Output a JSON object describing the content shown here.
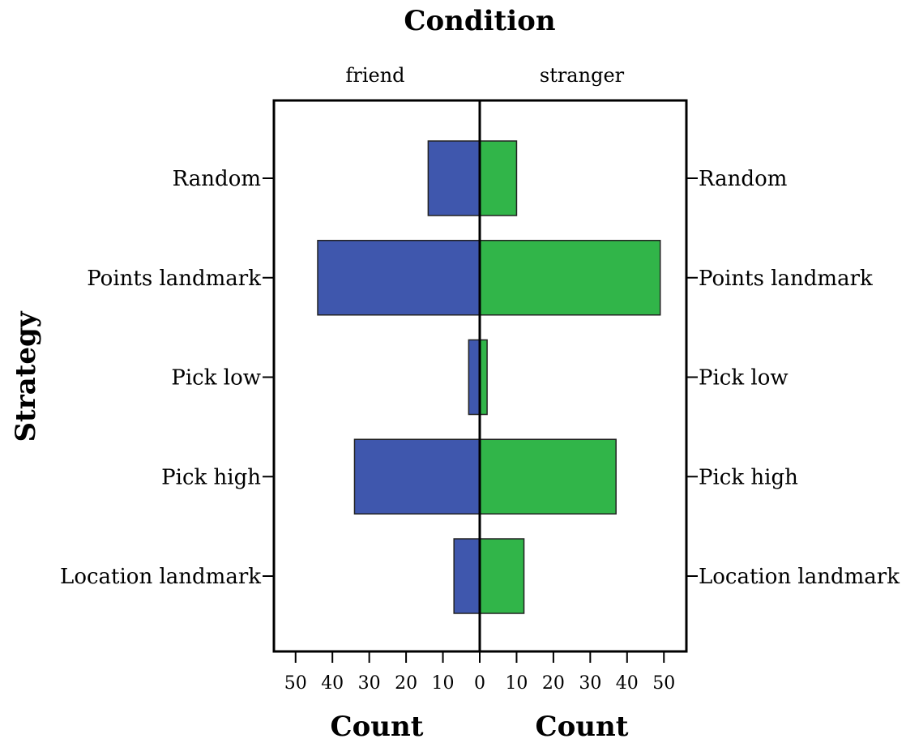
{
  "chart_data": {
    "type": "bar",
    "orientation": "horizontal",
    "layout": "population-pyramid",
    "title": "Condition",
    "panels": [
      "friend",
      "stranger"
    ],
    "categories": [
      "Random",
      "Points landmark",
      "Pick low",
      "Pick high",
      "Location landmark"
    ],
    "series": [
      {
        "name": "friend",
        "values": [
          14,
          44,
          3,
          34,
          7
        ]
      },
      {
        "name": "stranger",
        "values": [
          10,
          49,
          2,
          37,
          12
        ]
      }
    ],
    "colors": {
      "friend": "#3f57ad",
      "stranger": "#31b549"
    },
    "xlim": [
      0,
      55
    ],
    "xticks": [
      0,
      10,
      20,
      30,
      40,
      50
    ],
    "xlabel_left": "Count",
    "xlabel_right": "Count",
    "ylabel": "Strategy",
    "grid": false
  }
}
